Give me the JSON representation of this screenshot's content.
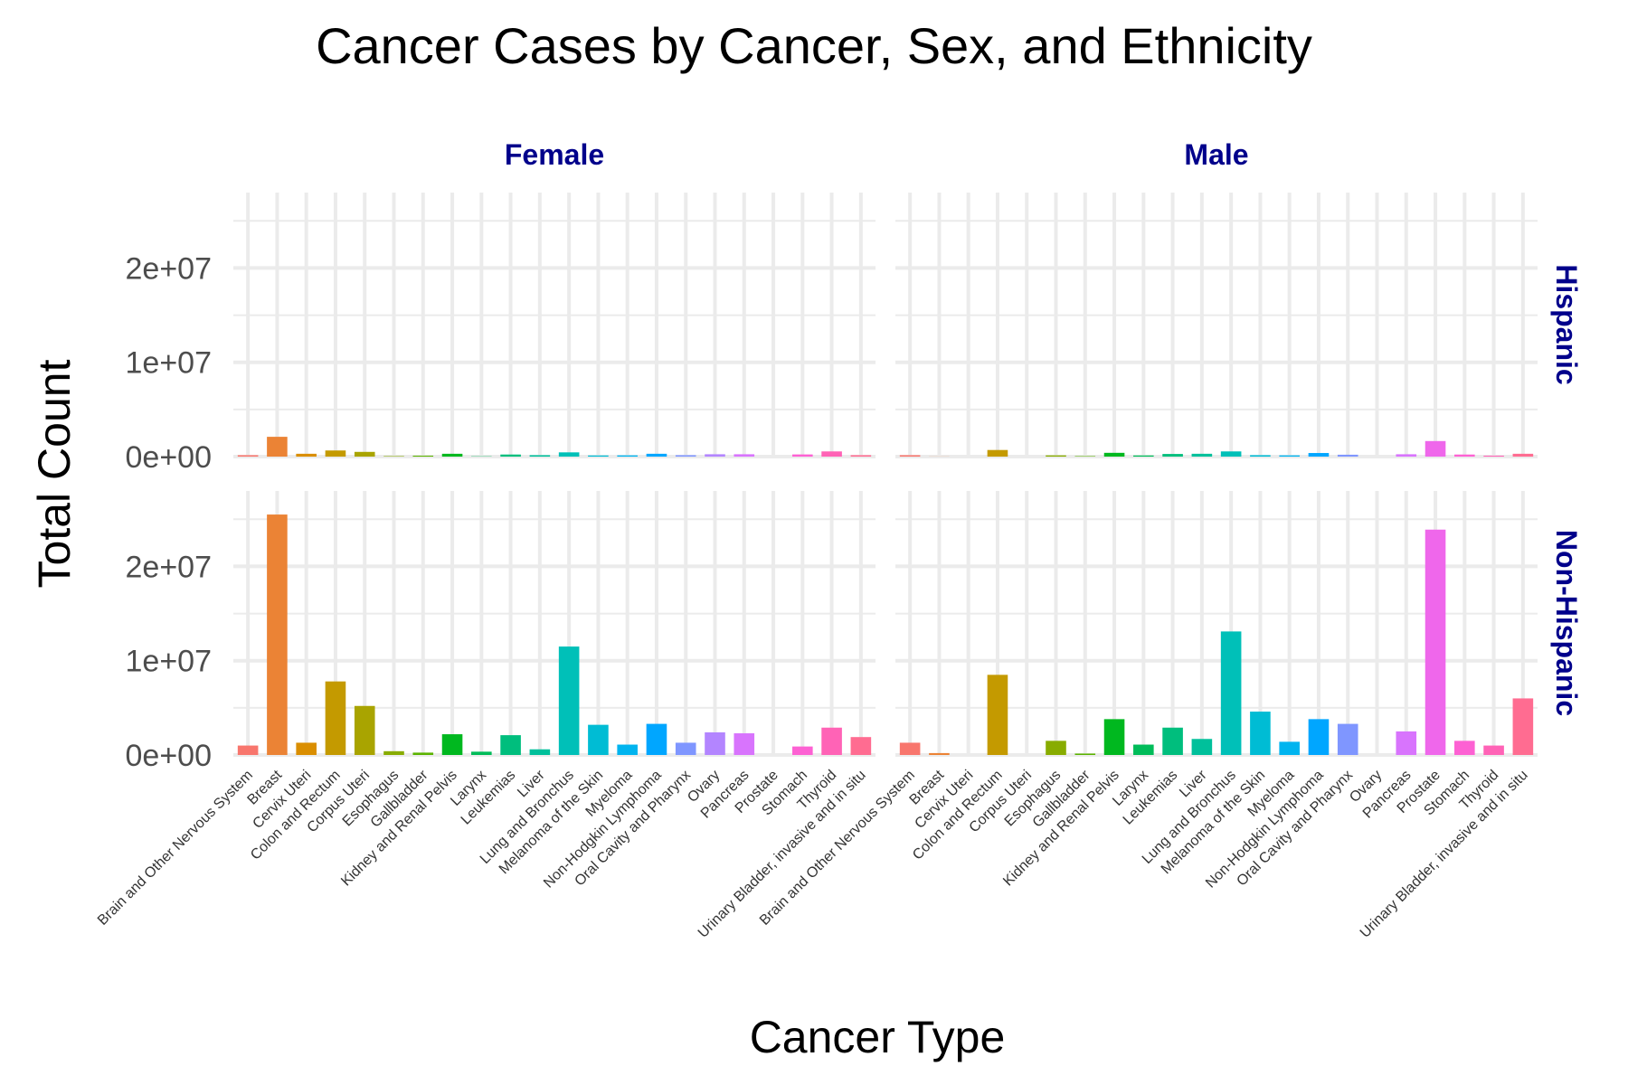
{
  "chart_data": {
    "type": "bar",
    "title": "Cancer Cases by Cancer, Sex, and Ethnicity",
    "xlabel": "Cancer Type",
    "ylabel": "Total Count",
    "ylim": [
      0,
      28000000
    ],
    "y_ticks": [
      0,
      10000000,
      20000000
    ],
    "y_tick_labels": [
      "0e+00",
      "1e+07",
      "2e+07"
    ],
    "grid": true,
    "legend": "none",
    "facet_columns": [
      "Female",
      "Male"
    ],
    "facet_rows": [
      "Hispanic",
      "Non-Hispanic"
    ],
    "categories": [
      "Brain and Other Nervous System",
      "Breast",
      "Cervix Uteri",
      "Colon and Rectum",
      "Corpus Uteri",
      "Esophagus",
      "Gallbladder",
      "Kidney and Renal Pelvis",
      "Larynx",
      "Leukemias",
      "Liver",
      "Lung and Bronchus",
      "Melanoma of the Skin",
      "Myeloma",
      "Non-Hodgkin Lymphoma",
      "Oral Cavity and Pharynx",
      "Ovary",
      "Pancreas",
      "Prostate",
      "Stomach",
      "Thyroid",
      "Urinary Bladder, invasive and in situ"
    ],
    "colors": [
      "#F8766D",
      "#EB8335",
      "#DA8E00",
      "#C49A00",
      "#A9A400",
      "#88AC00",
      "#5BB300",
      "#00B81F",
      "#00BC59",
      "#00BE7D",
      "#00C09B",
      "#00C0B8",
      "#00BCD4",
      "#00B4EF",
      "#00A6FF",
      "#7F96FF",
      "#B385FF",
      "#D874FD",
      "#EF67EB",
      "#FD61D3",
      "#FF63B6",
      "#FF6C91"
    ],
    "panels": [
      {
        "sex": "Female",
        "ethnicity": "Hispanic",
        "values": [
          150000,
          2100000,
          300000,
          650000,
          500000,
          50000,
          100000,
          300000,
          30000,
          220000,
          150000,
          450000,
          120000,
          130000,
          300000,
          150000,
          250000,
          250000,
          0,
          230000,
          550000,
          150000
        ]
      },
      {
        "sex": "Male",
        "ethnicity": "Hispanic",
        "values": [
          150000,
          10000,
          0,
          700000,
          0,
          130000,
          50000,
          400000,
          120000,
          280000,
          300000,
          550000,
          150000,
          130000,
          380000,
          200000,
          0,
          250000,
          1650000,
          220000,
          100000,
          300000
        ]
      },
      {
        "sex": "Female",
        "ethnicity": "Non-Hispanic",
        "values": [
          1000000,
          25500000,
          1300000,
          7800000,
          5200000,
          400000,
          250000,
          2200000,
          350000,
          2100000,
          600000,
          11500000,
          3200000,
          1100000,
          3300000,
          1300000,
          2400000,
          2300000,
          0,
          900000,
          2900000,
          1900000
        ]
      },
      {
        "sex": "Male",
        "ethnicity": "Non-Hispanic",
        "values": [
          1300000,
          200000,
          0,
          8500000,
          0,
          1500000,
          150000,
          3800000,
          1100000,
          2900000,
          1700000,
          13100000,
          4600000,
          1400000,
          3800000,
          3300000,
          0,
          2500000,
          23900000,
          1500000,
          1000000,
          6000000
        ]
      }
    ]
  }
}
